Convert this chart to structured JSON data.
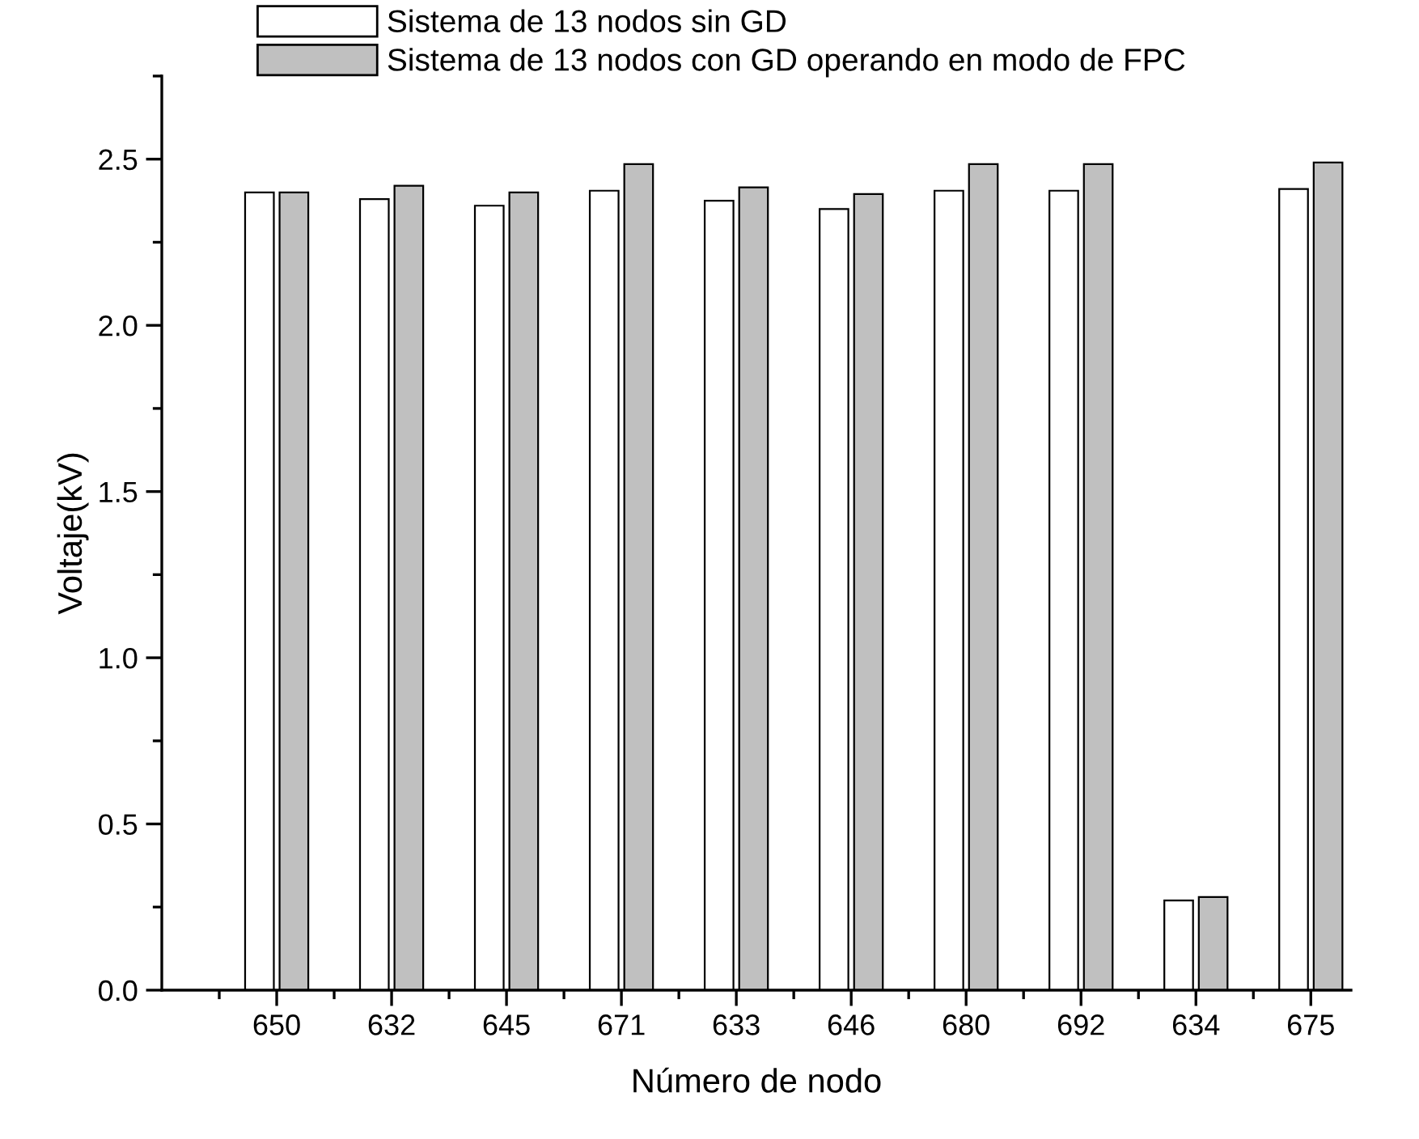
{
  "chart_data": {
    "type": "bar",
    "xlabel": "Número de nodo",
    "ylabel": "Voltaje(kV)",
    "categories": [
      "650",
      "632",
      "645",
      "671",
      "633",
      "646",
      "680",
      "692",
      "634",
      "675"
    ],
    "series": [
      {
        "name": "Sistema de 13 nodos sin GD",
        "color": "#ffffff",
        "values": [
          2.4,
          2.38,
          2.36,
          2.405,
          2.375,
          2.35,
          2.405,
          2.405,
          0.27,
          2.41
        ]
      },
      {
        "name": "Sistema de 13 nodos con GD operando en modo de FPC",
        "color": "#c0c0c0",
        "values": [
          2.4,
          2.42,
          2.4,
          2.485,
          2.415,
          2.395,
          2.485,
          2.485,
          0.28,
          2.49
        ]
      }
    ],
    "ylim": [
      0,
      2.75
    ],
    "yticks": [
      {
        "value": 0,
        "label": "0.0"
      },
      0.5,
      {
        "value": 1,
        "label": "1.0"
      },
      1.5,
      {
        "value": 2,
        "label": "2.0"
      },
      2.5
    ],
    "grid": false,
    "legend": "top"
  }
}
